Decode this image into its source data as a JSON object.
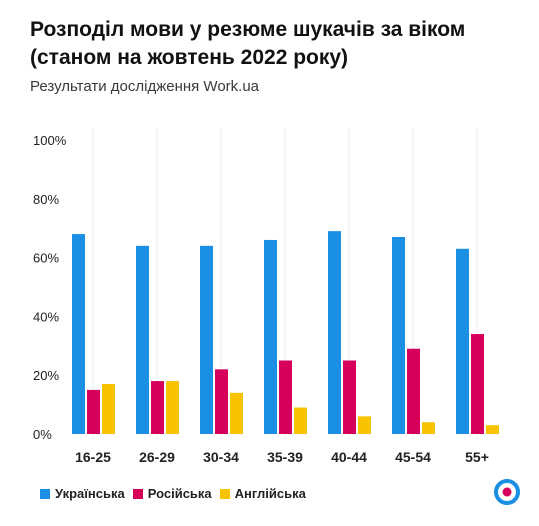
{
  "title_line1": "Розподіл мови у резюме шукачів за віком",
  "title_line2": "(станом на жовтень 2022 року)",
  "subtitle": "Результати дослідження Work.ua",
  "colors": {
    "ukrainian": "#1a8fe3",
    "russian": "#d6005b",
    "english": "#f7c300",
    "grid": "#ececec",
    "logo": "#1a8fe3",
    "logo_center": "#d6005b"
  },
  "logo_icon": "work-ua-logo-icon",
  "chart_data": {
    "type": "bar",
    "categories": [
      "16-25",
      "26-29",
      "30-34",
      "35-39",
      "40-44",
      "45-54",
      "55+"
    ],
    "series": [
      {
        "name": "Українська",
        "values": [
          68,
          64,
          64,
          66,
          69,
          67,
          63
        ]
      },
      {
        "name": "Російська",
        "values": [
          15,
          18,
          22,
          25,
          25,
          29,
          34
        ]
      },
      {
        "name": "Англійська",
        "values": [
          17,
          18,
          14,
          9,
          6,
          4,
          3
        ]
      }
    ],
    "yticks": [
      "0%",
      "20%",
      "40%",
      "60%",
      "80%",
      "100%"
    ],
    "ylim": [
      0,
      100
    ],
    "grid": "vertical separators",
    "legend_position": "bottom-left"
  }
}
